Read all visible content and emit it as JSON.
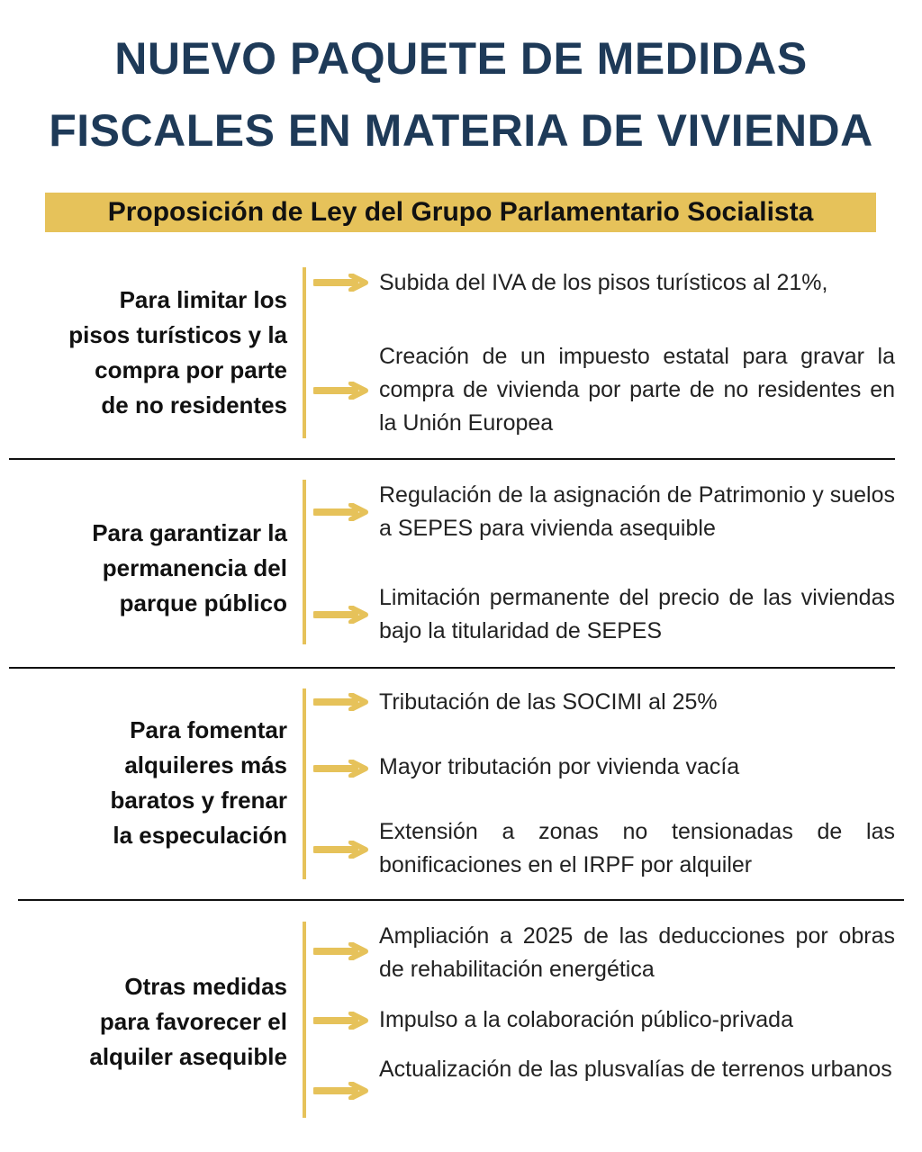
{
  "title_line1": "NUEVO PAQUETE DE MEDIDAS",
  "title_line2": "FISCALES EN MATERIA DE VIVIENDA",
  "subtitle": "Proposición de Ley del Grupo Parlamentario Socialista",
  "colors": {
    "accent": "#e6c25a",
    "title": "#1e3a58",
    "text": "#222222"
  },
  "arrow_icon": "right-arrow-icon",
  "sections": [
    {
      "label_lines": [
        "Para limitar los",
        "pisos turísticos y la",
        "compra por parte",
        "de no residentes"
      ],
      "items": [
        "Subida del IVA de los pisos turísticos al 21%,",
        "Creación de un impuesto estatal para gravar la compra de vivienda por parte de no residentes en la Unión Europea"
      ]
    },
    {
      "label_lines": [
        "Para garantizar la",
        "permanencia del",
        "parque público"
      ],
      "items": [
        "Regulación de la asignación de Patrimonio y suelos a SEPES para vivienda asequible",
        "Limitación permanente del precio de las viviendas bajo la titularidad de SEPES"
      ]
    },
    {
      "label_lines": [
        "Para fomentar",
        "alquileres más",
        "baratos y frenar",
        "la especulación"
      ],
      "items": [
        "Tributación de las SOCIMI al 25%",
        "Mayor tributación por vivienda vacía",
        "Extensión a zonas no tensionadas de las bonificaciones en el IRPF por alquiler"
      ]
    },
    {
      "label_lines": [
        "Otras medidas",
        "para favorecer el",
        "alquiler asequible"
      ],
      "items": [
        "Ampliación a 2025 de las deducciones por obras de rehabilitación energética",
        "Impulso a la colaboración público-privada",
        "Actualización de las plusvalías de terrenos urbanos"
      ]
    }
  ]
}
